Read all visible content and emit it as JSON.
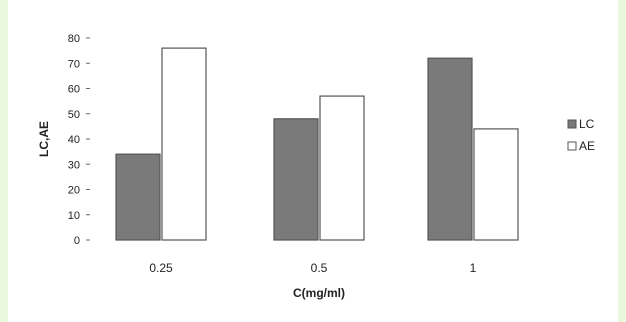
{
  "chart_data": {
    "type": "bar",
    "title": "",
    "xlabel": "C(mg/ml)",
    "ylabel": "LC,AE",
    "ylim": [
      0,
      80
    ],
    "yticks": [
      0,
      10,
      20,
      30,
      40,
      50,
      60,
      70,
      80
    ],
    "categories": [
      "0.25",
      "0.5",
      "1"
    ],
    "series": [
      {
        "name": "LC",
        "values": [
          34,
          48,
          72
        ],
        "color": "#7a7a7a"
      },
      {
        "name": "AE",
        "values": [
          76,
          57,
          44
        ],
        "color": "#ffffff"
      }
    ],
    "grid": false,
    "legend_position": "right"
  }
}
